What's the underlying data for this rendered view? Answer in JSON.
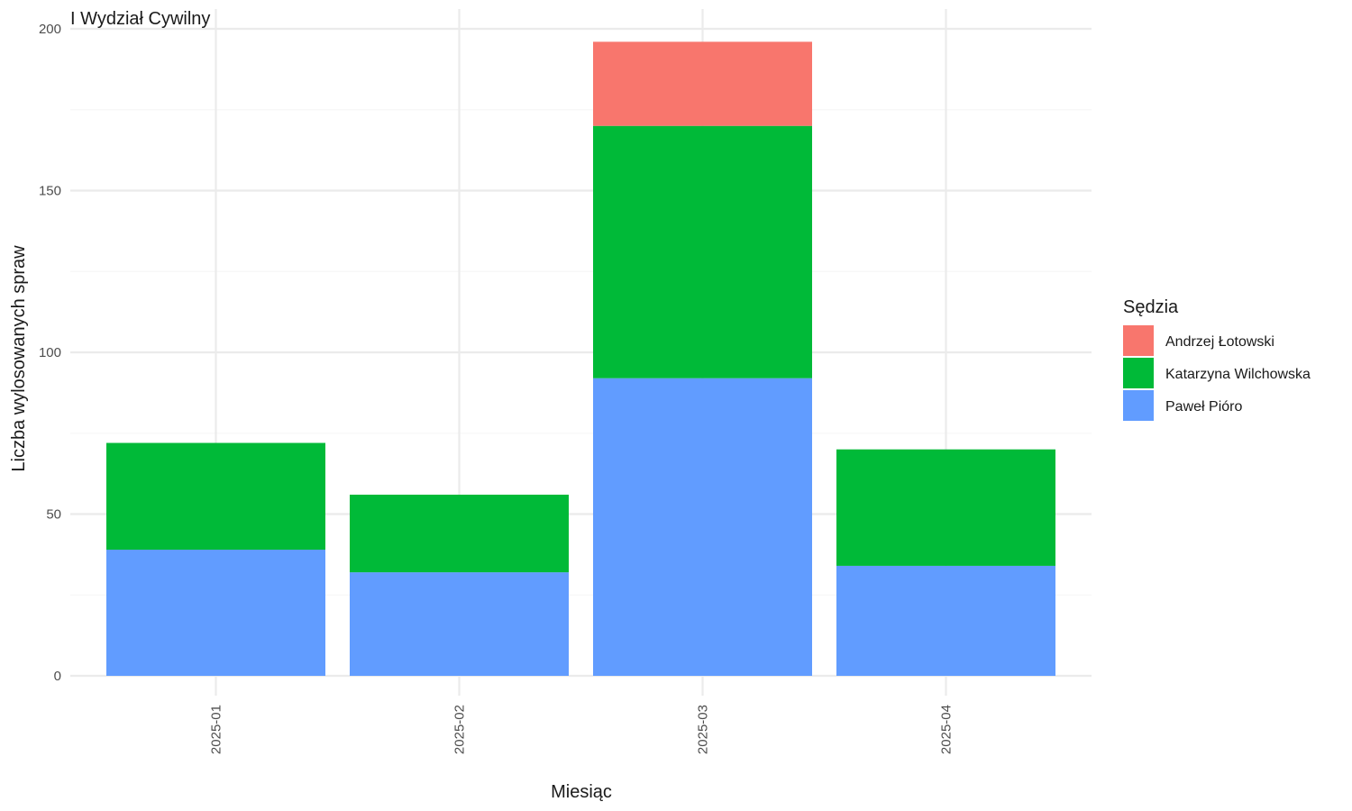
{
  "chart_data": {
    "type": "bar",
    "stacked": true,
    "title": "I Wydział Cywilny",
    "xlabel": "Miesiąc",
    "ylabel": "Liczba wylosowanych spraw",
    "categories": [
      "2025-01",
      "2025-02",
      "2025-03",
      "2025-04"
    ],
    "ylim": [
      0,
      200
    ],
    "yticks": [
      0,
      50,
      100,
      150,
      200
    ],
    "grid": true,
    "legend": {
      "title": "Sędzia",
      "position": "right"
    },
    "series": [
      {
        "name": "Paweł Pióro",
        "color": "#619CFF",
        "values": [
          39,
          32,
          92,
          34
        ]
      },
      {
        "name": "Katarzyna Wilchowska",
        "color": "#00BA38",
        "values": [
          33,
          24,
          78,
          36
        ]
      },
      {
        "name": "Andrzej Łotowski",
        "color": "#F8766D",
        "values": [
          0,
          0,
          26,
          0
        ]
      }
    ],
    "legend_order": [
      "Andrzej Łotowski",
      "Katarzyna Wilchowska",
      "Paweł Pióro"
    ]
  }
}
